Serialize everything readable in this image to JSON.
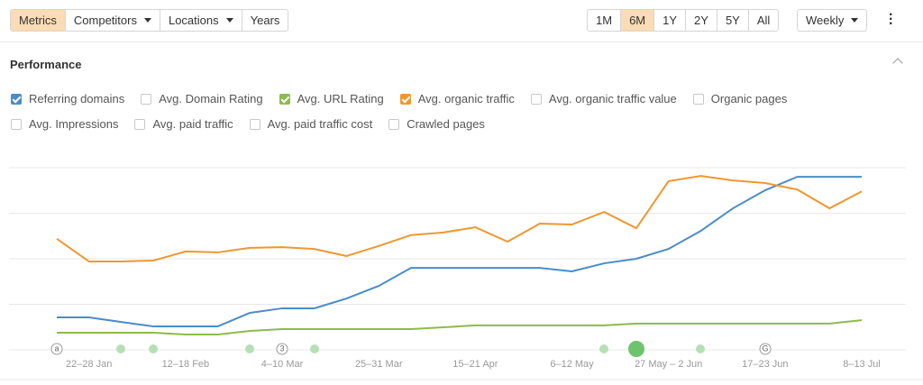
{
  "toolbar": {
    "tabs": [
      "Metrics",
      "Competitors",
      "Locations",
      "Years"
    ],
    "ranges": [
      "1M",
      "6M",
      "1Y",
      "2Y",
      "5Y",
      "All"
    ],
    "interval": "Weekly"
  },
  "section_title": "Performance",
  "unchecked_metrics": [
    "Avg. Domain Rating",
    "Avg. organic traffic value",
    "Organic pages",
    "Avg. Impressions",
    "Avg. paid traffic",
    "Avg. paid traffic cost",
    "Crawled pages"
  ],
  "chart_data": {
    "type": "line",
    "categories": [
      null,
      "22–28 Jan",
      null,
      null,
      "12–18 Feb",
      null,
      null,
      "4–10 Mar",
      null,
      null,
      "25–31 Mar",
      null,
      null,
      "15–21 Apr",
      null,
      null,
      "6–12 May",
      null,
      null,
      "27 May – 2 Jun",
      null,
      null,
      "17–23 Jun",
      null,
      null,
      "8–13 Jul"
    ],
    "series": [
      {
        "name": "Referring domains",
        "color": "#4a8ccb",
        "values": [
          17.8,
          17.8,
          15.3,
          12.9,
          12.9,
          12.9,
          20.3,
          22.8,
          22.8,
          28.2,
          35.1,
          45,
          45,
          45,
          45,
          45,
          43.1,
          47.5,
          50,
          55.4,
          65.3,
          77.7,
          87.6,
          95,
          95,
          95
        ]
      },
      {
        "name": "Avg. URL Rating",
        "color": "#8dbb4c",
        "values": [
          9.4,
          9.4,
          9.4,
          9.4,
          8.4,
          8.4,
          10.4,
          11.4,
          11.4,
          11.4,
          11.4,
          11.4,
          12.4,
          13.4,
          13.4,
          13.4,
          13.4,
          13.4,
          14.4,
          14.4,
          14.4,
          14.4,
          14.4,
          14.4,
          14.4,
          16.3
        ]
      },
      {
        "name": "Avg. organic traffic",
        "color": "#f0972f",
        "values": [
          61,
          48.5,
          48.5,
          49,
          54,
          53.5,
          56,
          56.4,
          55.4,
          51.5,
          57,
          63,
          64.4,
          67.3,
          59.4,
          69.3,
          68.8,
          75.7,
          66.8,
          92.6,
          95.5,
          93,
          91.6,
          88,
          77.7,
          87
        ]
      }
    ],
    "ylim": [
      0,
      100
    ],
    "yticks": [
      0,
      25,
      50,
      75,
      100
    ],
    "grid": true,
    "ytick_labels": false,
    "annotations": [
      "a",
      "3",
      "G"
    ]
  }
}
